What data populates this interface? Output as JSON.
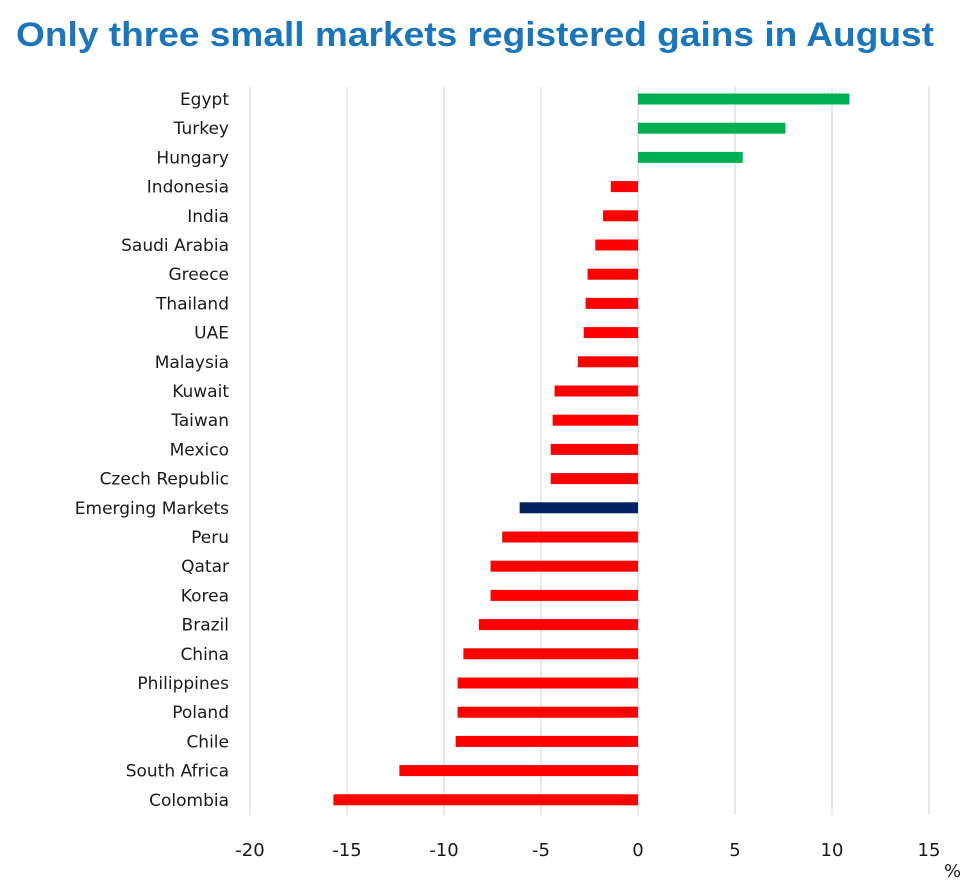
{
  "title": "Only three small markets registered gains in August",
  "chart_data": {
    "type": "bar",
    "orientation": "horizontal",
    "title": "Only three small markets registered gains in August",
    "xlabel": "%",
    "ylabel": "",
    "xlim": [
      -20,
      15
    ],
    "xticks": [
      -20,
      -15,
      -10,
      -5,
      0,
      5,
      10,
      15
    ],
    "xtick_labels": [
      "-20",
      "-15",
      "-10",
      "-5",
      "0",
      "5",
      "10",
      "15"
    ],
    "grid": true,
    "legend": "none",
    "categories": [
      "Egypt",
      "Turkey",
      "Hungary",
      "Indonesia",
      "India",
      "Saudi Arabia",
      "Greece",
      "Thailand",
      "UAE",
      "Malaysia",
      "Kuwait",
      "Taiwan",
      "Mexico",
      "Czech Republic",
      "Emerging Markets",
      "Peru",
      "Qatar",
      "Korea",
      "Brazil",
      "China",
      "Philippines",
      "Poland",
      "Chile",
      "South Africa",
      "Colombia"
    ],
    "values": [
      10.9,
      7.6,
      5.4,
      -1.4,
      -1.8,
      -2.2,
      -2.6,
      -2.7,
      -2.8,
      -3.1,
      -4.3,
      -4.4,
      -4.5,
      -4.5,
      -6.1,
      -7.0,
      -7.6,
      -7.6,
      -8.2,
      -9.0,
      -9.3,
      -9.3,
      -9.4,
      -12.3,
      -15.7
    ],
    "benchmark": "Emerging Markets",
    "colors": {
      "positive": "#00B050",
      "negative": "#FF0000",
      "benchmark": "#002060",
      "title": "#1B75BB"
    }
  }
}
